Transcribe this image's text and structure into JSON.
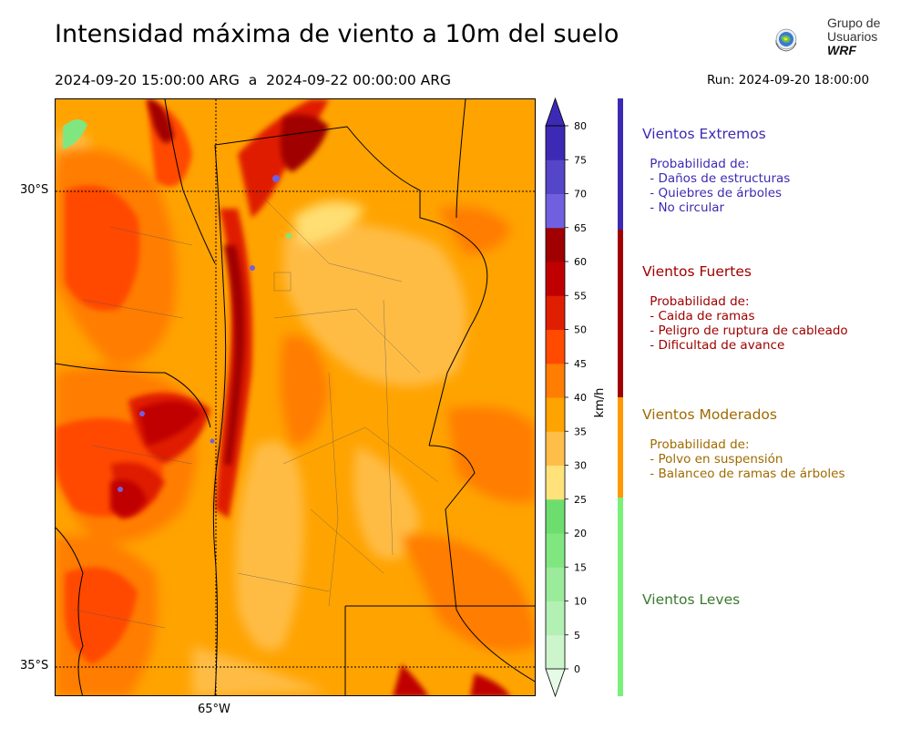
{
  "header": {
    "title": "Intensidad máxima de viento a 10m del suelo",
    "period": "2024-09-20 15:00:00 ARG  a  2024-09-22 00:00:00 ARG",
    "run": "Run: 2024-09-20 18:00:00",
    "logo_line1": "Grupo de",
    "logo_line2": "Usuarios",
    "logo_line3": "WRF"
  },
  "map": {
    "lat_labels": [
      "30°S",
      "35°S"
    ],
    "lon_labels": [
      "65°W"
    ]
  },
  "colorbar": {
    "unit": "km/h",
    "ticks": [
      "0",
      "5",
      "10",
      "15",
      "20",
      "25",
      "30",
      "35",
      "40",
      "45",
      "50",
      "55",
      "60",
      "65",
      "70",
      "75",
      "80"
    ],
    "colors": [
      "#e6fbe6",
      "#ccf5cc",
      "#b3f0b3",
      "#9aeb9a",
      "#80e680",
      "#6dde6d",
      "#ffe27a",
      "#ffbe48",
      "#ffa300",
      "#ff7d00",
      "#ff4a00",
      "#e01e00",
      "#c00000",
      "#a00000",
      "#7060e0",
      "#5545c8",
      "#3c2ab4"
    ],
    "over_color": "#3c2ab4"
  },
  "legend": [
    {
      "title": "Vientos Extremos",
      "color": "#3c2ab4",
      "text_color": "#3c2ab4",
      "desc": [
        " Probabilidad de:",
        " - Daños de estructuras",
        " - Quiebres de árboles",
        " - No circular"
      ]
    },
    {
      "title": "Vientos Fuertes",
      "color": "#a00000",
      "text_color": "#a00000",
      "desc": [
        " Probabilidad de:",
        " - Caida de ramas",
        " - Peligro de ruptura de cableado",
        " - Dificultad de avance"
      ]
    },
    {
      "title": "Vientos Moderados",
      "color": "#ff9900",
      "text_color": "#a06a00",
      "desc": [
        " Probabilidad de:",
        " - Polvo en suspensión",
        " - Balanceo de ramas de árboles"
      ]
    },
    {
      "title": "Vientos Leves",
      "color": "#7af07a",
      "text_color": "#3a7a2e",
      "desc": []
    }
  ]
}
